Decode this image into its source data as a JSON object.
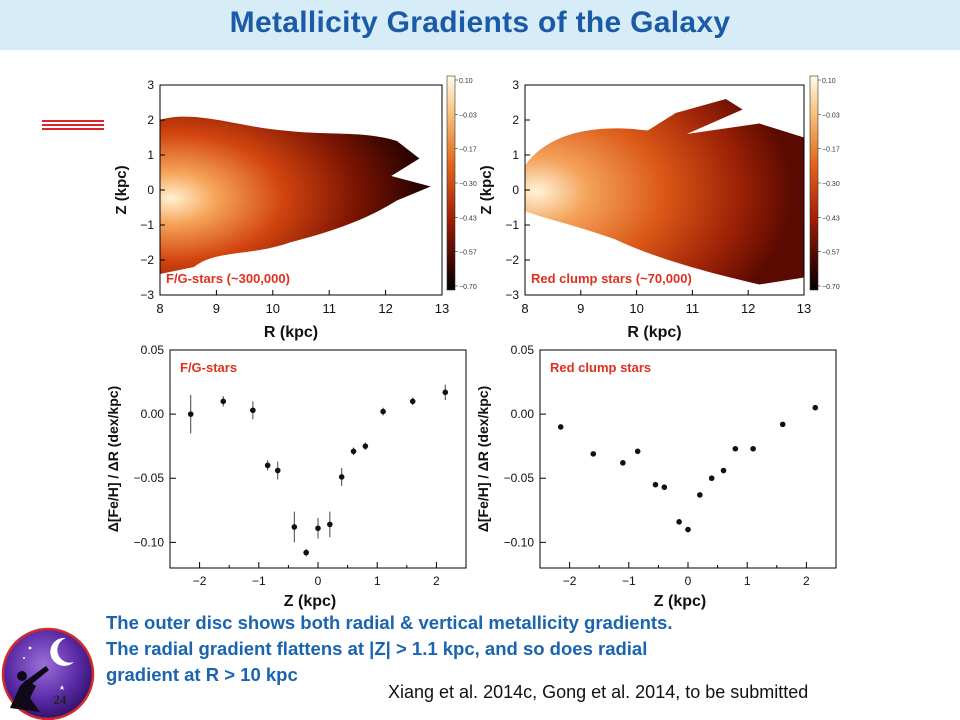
{
  "slide": {
    "title": "Metallicity Gradients of the Galaxy",
    "caption_lines": [
      "The outer disc shows both radial & vertical metallicity gradients.",
      "The radial gradient flattens at |Z| > 1.1 kpc, and so does radial",
      "gradient at R > 10 kpc"
    ],
    "citation": "Xiang et al. 2014c, Gong et al. 2014, to be submitted",
    "page_number": "24",
    "accent_colors": {
      "title": "#1a5aa6",
      "title_bar": "#d6ecf7",
      "caption": "#1a64b0",
      "rule": "#d9252b"
    }
  },
  "chart_data": [
    {
      "type": "heatmap",
      "label": "F/G-stars (~300,000)",
      "xlabel": "R (kpc)",
      "ylabel": "Z (kpc)",
      "xlim": [
        8,
        13
      ],
      "ylim": [
        -3,
        3
      ],
      "xticks": [
        "8",
        "9",
        "10",
        "11",
        "12",
        "13"
      ],
      "yticks": [
        "3",
        "2",
        "1",
        "0",
        "−1",
        "−2",
        "−3"
      ],
      "colorbar_ticks": [
        "0.10",
        "−0.03",
        "−0.17",
        "−0.30",
        "−0.43",
        "−0.57",
        "−0.70"
      ]
    },
    {
      "type": "heatmap",
      "label": "Red clump stars (~70,000)",
      "xlabel": "R (kpc)",
      "ylabel": "Z (kpc)",
      "xlim": [
        8,
        13
      ],
      "ylim": [
        -3,
        3
      ],
      "xticks": [
        "8",
        "9",
        "10",
        "11",
        "12",
        "13"
      ],
      "yticks": [
        "3",
        "2",
        "1",
        "0",
        "−1",
        "−2",
        "−3"
      ],
      "colorbar_ticks": [
        "0.10",
        "−0.03",
        "−0.17",
        "−0.30",
        "−0.43",
        "−0.57",
        "−0.70"
      ]
    },
    {
      "type": "scatter",
      "label": "F/G-stars",
      "xlabel": "Z (kpc)",
      "ylabel": "Δ[Fe/H] / ΔR (dex/kpc)",
      "xlim": [
        -2.5,
        2.5
      ],
      "ylim": [
        -0.12,
        0.05
      ],
      "xticks": [
        "−2",
        "−1",
        "0",
        "1",
        "2"
      ],
      "yticks": [
        "0.05",
        "0.00",
        "−0.05",
        "−0.10"
      ],
      "x": [
        -2.15,
        -1.6,
        -1.1,
        -0.85,
        -0.68,
        -0.4,
        -0.2,
        0.0,
        0.2,
        0.4,
        0.6,
        0.8,
        1.1,
        1.6,
        2.15
      ],
      "y": [
        0.0,
        0.01,
        0.003,
        -0.04,
        -0.044,
        -0.088,
        -0.108,
        -0.089,
        -0.086,
        -0.049,
        -0.029,
        -0.025,
        0.002,
        0.01,
        0.017
      ],
      "yerr": [
        0.015,
        0.004,
        0.007,
        0.004,
        0.007,
        0.012,
        0.003,
        0.008,
        0.01,
        0.007,
        0.003,
        0.003,
        0.003,
        0.003,
        0.006
      ]
    },
    {
      "type": "scatter",
      "label": "Red clump stars",
      "xlabel": "Z (kpc)",
      "ylabel": "Δ[Fe/H] / ΔR (dex/kpc)",
      "xlim": [
        -2.5,
        2.5
      ],
      "ylim": [
        -0.12,
        0.05
      ],
      "xticks": [
        "−2",
        "−1",
        "0",
        "1",
        "2"
      ],
      "yticks": [
        "0.05",
        "0.00",
        "−0.05",
        "−0.10"
      ],
      "x": [
        -2.15,
        -1.6,
        -1.1,
        -0.85,
        -0.55,
        -0.4,
        -0.15,
        0.0,
        0.2,
        0.4,
        0.6,
        0.8,
        1.1,
        1.6,
        2.15
      ],
      "y": [
        -0.01,
        -0.031,
        -0.038,
        -0.029,
        -0.055,
        -0.057,
        -0.084,
        -0.09,
        -0.063,
        -0.05,
        -0.044,
        -0.027,
        -0.027,
        -0.008,
        0.005
      ]
    }
  ]
}
